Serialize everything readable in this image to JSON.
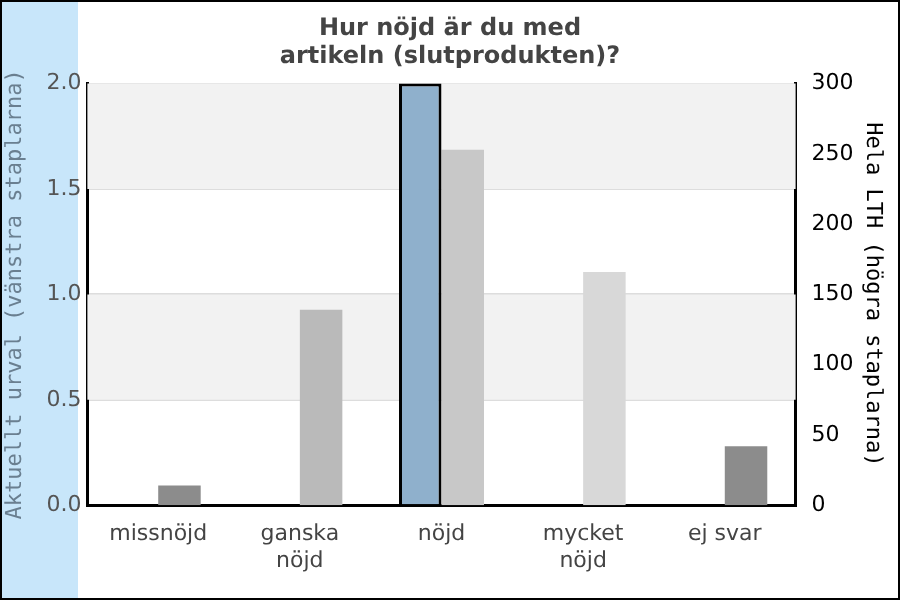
{
  "chart_data": {
    "type": "bar",
    "title": "Hur nöjd är du med\nartikeln (slutprodukten)?",
    "ylabel": "Aktuellt urval (vänstra staplarna)",
    "y2label": "Hela LTH (högra staplarna)",
    "categories": [
      "missnöjd",
      "ganska nöjd",
      "nöjd",
      "mycket nöjd",
      "ej svar"
    ],
    "series": [
      {
        "color": "#8fb0cc",
        "values": [
          null,
          null,
          2.0,
          null,
          null
        ]
      },
      {
        "colors": [
          "#8c8c8c",
          "#bababa",
          "#c8c8c8",
          "#d8d8d8",
          "#8c8c8c"
        ],
        "axis": "y2",
        "values": [
          14,
          139,
          253,
          166,
          42
        ]
      }
    ],
    "ylim": [
      0,
      2
    ],
    "yticks": [
      {
        "value": 0,
        "label": "0.0"
      },
      {
        "value": 0.5,
        "label": "0.5"
      },
      {
        "value": 1,
        "label": "1.0"
      },
      {
        "value": 1.5,
        "label": "1.5"
      },
      {
        "value": 2,
        "label": "2.0"
      }
    ],
    "y2lim": [
      0,
      300
    ],
    "y2ticks": [
      0,
      50,
      100,
      150,
      200,
      250,
      300
    ],
    "bands": [
      {
        "axis": "y",
        "from": 0.5,
        "to": 1.0,
        "color": "#f2f2f2"
      },
      {
        "axis": "y",
        "from": 1.5,
        "to": 2.0,
        "color": "#f2f2f2"
      }
    ],
    "grid": "y",
    "legend": false
  }
}
